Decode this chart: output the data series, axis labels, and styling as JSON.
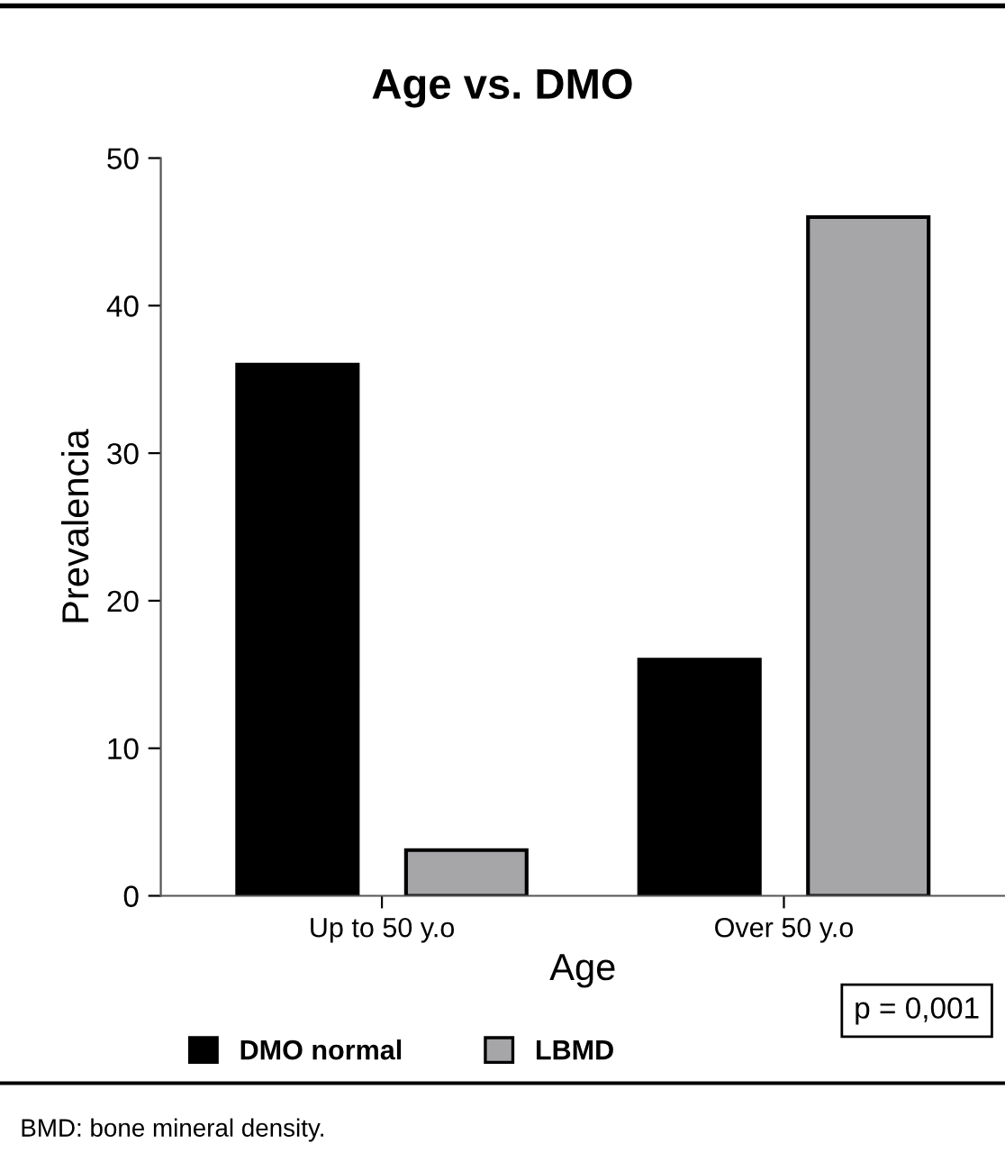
{
  "chart_data": {
    "type": "bar",
    "title": "Age vs. DMO",
    "xlabel": "Age",
    "ylabel": "Prevalencia",
    "categories": [
      "Up to 50 y.o",
      "Over 50 y.o"
    ],
    "series": [
      {
        "name": "DMO normal",
        "color": "#000000",
        "values": [
          36,
          16
        ]
      },
      {
        "name": "LBMD",
        "color": "#a6a5a8",
        "values": [
          3.1,
          46
        ]
      }
    ],
    "ylim": [
      0,
      50
    ],
    "yticks": [
      0,
      10,
      20,
      30,
      40,
      50
    ],
    "grid": false,
    "legend": "bottom",
    "annotations": [
      "p = 0,001",
      "BMD: bone mineral density."
    ]
  }
}
